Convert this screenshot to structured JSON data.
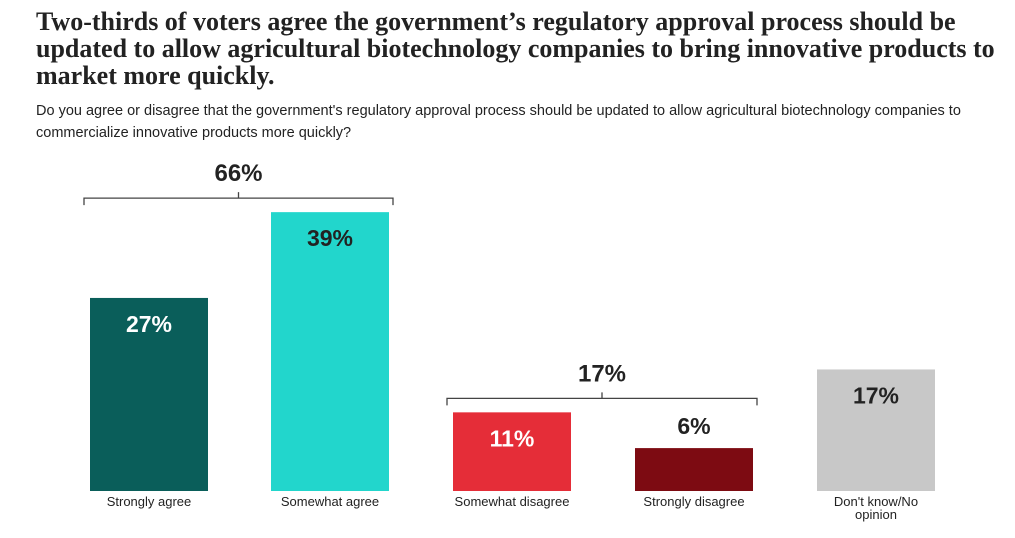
{
  "title": "Two-thirds of voters agree the government’s regulatory approval process should be updated to allow agricultural biotechnology companies to bring innovative products to market more quickly.",
  "subtitle": "Do you agree or disagree that the government's regulatory approval process should be updated to allow agricultural biotechnology companies to commercialize innovative products more quickly?",
  "chart_data": {
    "type": "bar",
    "categories": [
      "Strongly agree",
      "Somewhat agree",
      "Somewhat disagree",
      "Strongly disagree",
      "Don't know/No opinion"
    ],
    "category_lines": [
      [
        "Strongly agree"
      ],
      [
        "Somewhat agree"
      ],
      [
        "Somewhat disagree"
      ],
      [
        "Strongly disagree"
      ],
      [
        "Don't know/No",
        "opinion"
      ]
    ],
    "values": [
      27,
      39,
      11,
      6,
      17
    ],
    "value_labels": [
      "27%",
      "39%",
      "11%",
      "6%",
      "17%"
    ],
    "colors": [
      "#0a5e5a",
      "#22d6cc",
      "#e52d38",
      "#7d0b12",
      "#c8c8c8"
    ],
    "label_colors": [
      "#ffffff",
      "#222222",
      "#ffffff",
      "#222222",
      "#222222"
    ],
    "label_inside": [
      true,
      true,
      true,
      false,
      true
    ],
    "unit": "%",
    "ylim": [
      0,
      40
    ],
    "grid": false,
    "legend": "none",
    "groups": [
      {
        "label": "66%",
        "from": 0,
        "to": 1
      },
      {
        "label": "17%",
        "from": 2,
        "to": 3
      }
    ]
  }
}
